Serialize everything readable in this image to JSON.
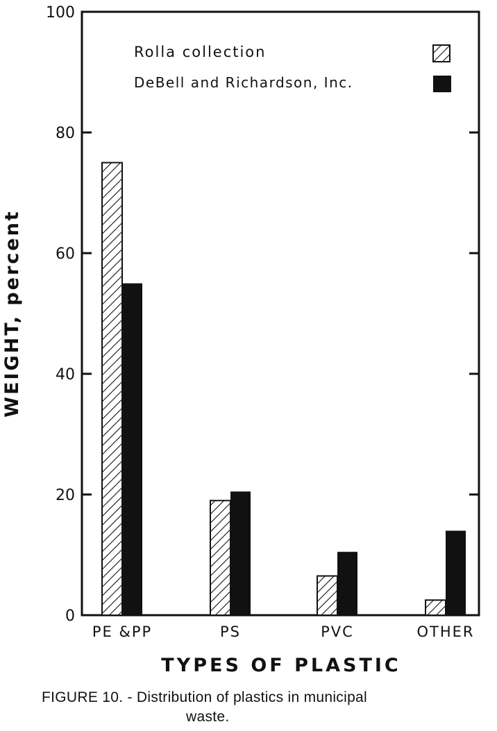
{
  "chart_data": {
    "type": "bar",
    "title": "",
    "xlabel": "TYPES OF PLASTIC",
    "ylabel": "WEIGHT, percent",
    "ylim": [
      0,
      100
    ],
    "yticks": [
      "0",
      "20",
      "40",
      "60",
      "80",
      "100"
    ],
    "categories": [
      "PE & PP",
      "PS",
      "PVC",
      "OTHER"
    ],
    "series": [
      {
        "name": "Rolla collection",
        "pattern": "hatched",
        "values": [
          75,
          19,
          6.5,
          2.5
        ]
      },
      {
        "name": "DeBell and Richardson, Inc.",
        "pattern": "solid",
        "color": "#111111",
        "values": [
          55,
          20.5,
          10.5,
          14
        ]
      }
    ],
    "legend_position": "top-right",
    "grid": false
  },
  "caption": {
    "line1": "FIGURE 10. - Distribution of plastics in municipal",
    "line2": "waste."
  }
}
